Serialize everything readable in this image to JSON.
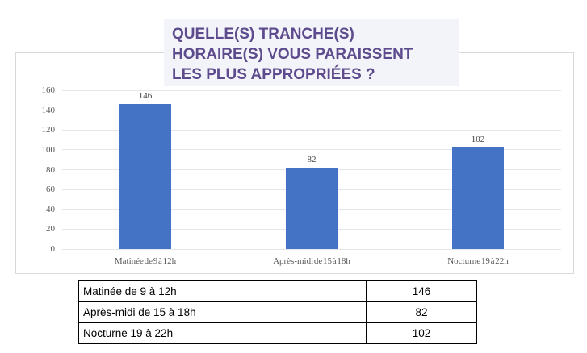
{
  "title": {
    "text": "QUELLE(S) TRANCHE(S)\nHORAIRE(S) VOUS PARAISSENT\nLES PLUS APPROPRIÉES ?",
    "color": "#5d4b8d",
    "background": "#f2f4f9"
  },
  "chart_data": {
    "type": "bar",
    "title": "QUELLE(S) TRANCHE(S) HORAIRE(S) VOUS PARAISSENT LES PLUS APPROPRIÉES ?",
    "categories": [
      "Matinée de 9 à 12h",
      "Après-midi de 15 à 18h",
      "Nocturne 19 à 22h"
    ],
    "values": [
      146,
      82,
      102
    ],
    "data_labels": [
      146,
      82,
      102
    ],
    "xlabel": "",
    "ylabel": "",
    "ylim": [
      0,
      160
    ],
    "ytick_step": 20,
    "yticks": [
      0,
      20,
      40,
      60,
      80,
      100,
      120,
      140,
      160
    ],
    "grid": true,
    "legend": false,
    "bar_color": "#4472c4",
    "gridline_color": "#e3e6eb",
    "axis_text_color": "#595959",
    "chart_border_color": "#d9d9d9"
  },
  "table": {
    "rows": [
      {
        "label": "Matinée de 9 à 12h",
        "value": 146
      },
      {
        "label": "Après-midi de 15 à 18h",
        "value": 82
      },
      {
        "label": "Nocturne 19 à 22h",
        "value": 102
      }
    ]
  }
}
